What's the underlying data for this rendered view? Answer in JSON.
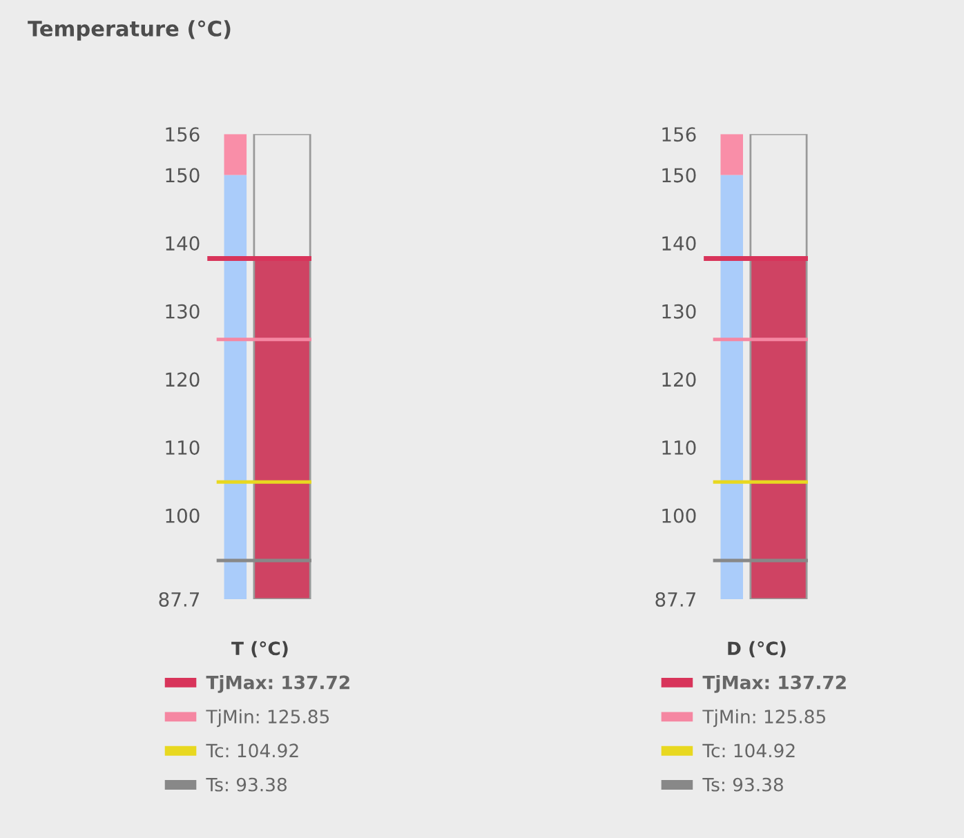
{
  "chart_data": [
    {
      "type": "bar",
      "title": "Temperature (°C)",
      "categories": [
        null,
        null
      ],
      "series": [
        {
          "colors": [
            "#aaccfa",
            "#cf4363"
          ],
          "values": [
            150,
            137.72
          ]
        }
      ],
      "bands": [
        {
          "axis": "y",
          "from": 150,
          "to": 156,
          "color": "#f98ea8"
        }
      ],
      "ylim": [
        87.7,
        156
      ],
      "yticks": [
        87.7,
        100,
        110,
        120,
        130,
        140,
        150,
        156
      ],
      "tick_labels": "y",
      "grid": false,
      "legend": "bottom",
      "legend_title": "T (°C)",
      "ref_lines": [
        {
          "axis": "y",
          "value": 137.72,
          "label": "TjMax: 137.72",
          "color": "#d8345a"
        },
        {
          "axis": "y",
          "value": 125.85,
          "label": "TjMin: 125.85",
          "color": "#f587a2"
        },
        {
          "axis": "y",
          "value": 104.92,
          "label": "Tc: 104.92",
          "color": "#e8d820"
        },
        {
          "axis": "y",
          "value": 93.38,
          "label": "Ts: 93.38",
          "color": "#888888"
        }
      ]
    },
    {
      "type": "bar",
      "categories": [
        null,
        null
      ],
      "series": [
        {
          "colors": [
            "#aaccfa",
            "#cf4363"
          ],
          "values": [
            150,
            137.72
          ]
        }
      ],
      "bands": [
        {
          "axis": "y",
          "from": 150,
          "to": 156,
          "color": "#f98ea8"
        }
      ],
      "ylim": [
        87.7,
        156
      ],
      "yticks": [
        87.7,
        100,
        110,
        120,
        130,
        140,
        150,
        156
      ],
      "tick_labels": "y",
      "grid": false,
      "legend": "bottom",
      "legend_title": "D (°C)",
      "ref_lines": [
        {
          "axis": "y",
          "value": 137.72,
          "label": "TjMax: 137.72",
          "color": "#d8345a"
        },
        {
          "axis": "y",
          "value": 125.85,
          "label": "TjMin: 125.85",
          "color": "#f587a2"
        },
        {
          "axis": "y",
          "value": 104.92,
          "label": "Tc: 104.92",
          "color": "#e8d820"
        },
        {
          "axis": "y",
          "value": 93.38,
          "label": "Ts: 93.38",
          "color": "#888888"
        }
      ]
    }
  ]
}
